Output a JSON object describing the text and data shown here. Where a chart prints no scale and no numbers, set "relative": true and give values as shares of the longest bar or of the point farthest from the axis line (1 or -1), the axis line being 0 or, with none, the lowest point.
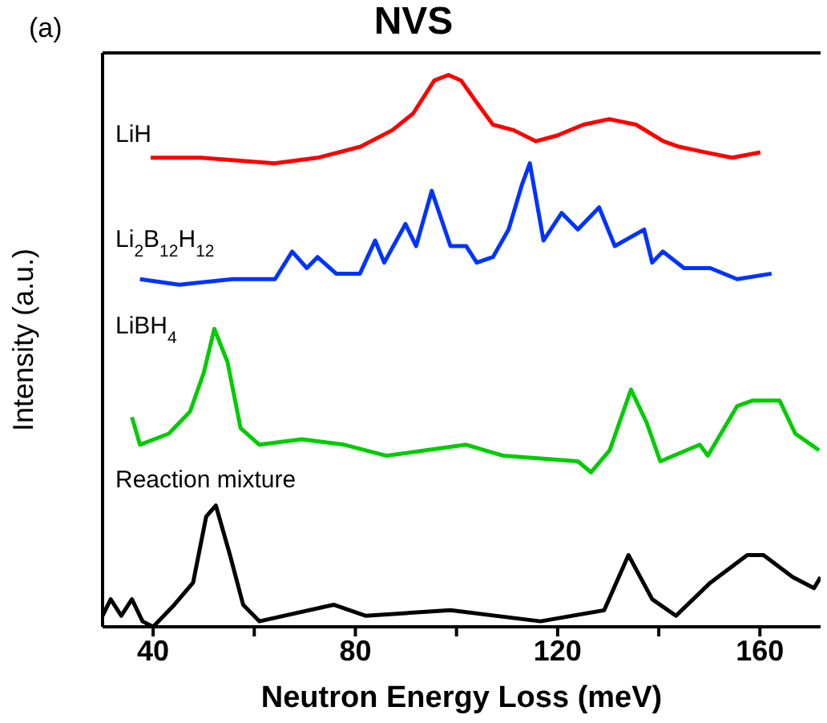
{
  "chart_data": {
    "type": "line",
    "title": "NVS",
    "xlabel": "Neutron Energy Loss (meV)",
    "ylabel": "Intensity (a.u.)",
    "annotations": [
      "(a)"
    ],
    "relative": true,
    "xlim": [
      30,
      172
    ],
    "xticks": [
      40,
      {
        "value": 60,
        "label": null
      },
      80,
      {
        "value": 100,
        "label": null
      },
      120,
      {
        "value": 140,
        "label": null
      },
      160
    ],
    "marker": "none",
    "line_style": "solid",
    "series": [
      {
        "name": "LiH",
        "color": "#ff0000",
        "x": [
          39.5,
          49.6,
          64.0,
          72.5,
          81.0,
          87.3,
          91.4,
          95.6,
          98.4,
          100.9,
          104.0,
          107.2,
          111.3,
          115.7,
          119.8,
          125.1,
          130.2,
          135.5,
          140.9,
          144.0,
          149.1,
          154.5,
          160.1
        ],
        "values": [
          0.85,
          0.85,
          0.84,
          0.85,
          0.87,
          0.9,
          0.93,
          0.99,
          1.0,
          0.99,
          0.95,
          0.91,
          0.9,
          0.88,
          0.89,
          0.91,
          0.92,
          0.91,
          0.88,
          0.87,
          0.86,
          0.85,
          0.86
        ]
      },
      {
        "name": "Li$_{2}$B$_{12}$H$_{12}$",
        "color": "#0033ff",
        "x": [
          37.4,
          45.2,
          55.7,
          64.1,
          67.5,
          70.4,
          72.5,
          76.2,
          80.9,
          83.9,
          85.7,
          89.9,
          92.0,
          95.1,
          98.8,
          101.9,
          104.0,
          107.2,
          110.3,
          112.9,
          114.5,
          117.2,
          120.8,
          124.0,
          128.2,
          131.3,
          137.1,
          138.7,
          140.8,
          145.0,
          150.2,
          155.5,
          162.3
        ],
        "values": [
          0.63,
          0.62,
          0.63,
          0.63,
          0.68,
          0.65,
          0.67,
          0.64,
          0.64,
          0.7,
          0.66,
          0.73,
          0.69,
          0.79,
          0.69,
          0.69,
          0.66,
          0.67,
          0.72,
          0.8,
          0.84,
          0.7,
          0.75,
          0.72,
          0.76,
          0.69,
          0.72,
          0.66,
          0.68,
          0.65,
          0.65,
          0.63,
          0.64
        ]
      },
      {
        "name": "LiBH$_{4}$",
        "color": "#00cc00",
        "x": [
          35.8,
          37.4,
          43.1,
          47.3,
          50.0,
          52.1,
          54.7,
          57.3,
          61.0,
          69.4,
          77.8,
          86.2,
          101.9,
          109.3,
          124.0,
          126.6,
          130.3,
          134.5,
          137.6,
          140.3,
          148.1,
          149.7,
          155.5,
          158.6,
          163.9,
          167.0,
          171.7
        ],
        "values": [
          0.38,
          0.33,
          0.35,
          0.39,
          0.46,
          0.54,
          0.48,
          0.36,
          0.33,
          0.34,
          0.33,
          0.31,
          0.33,
          0.31,
          0.3,
          0.28,
          0.32,
          0.43,
          0.37,
          0.3,
          0.33,
          0.31,
          0.4,
          0.41,
          0.41,
          0.35,
          0.32
        ]
      },
      {
        "name": "Reaction mixture",
        "color": "#000000",
        "x": [
          30.0,
          31.6,
          33.7,
          35.8,
          37.9,
          40.0,
          44.2,
          47.9,
          50.5,
          52.4,
          55.2,
          57.8,
          61.0,
          75.7,
          82.0,
          98.8,
          116.6,
          129.2,
          134.0,
          138.7,
          143.4,
          150.2,
          157.5,
          160.7,
          166.5,
          170.7,
          172
        ],
        "values": [
          0.02,
          0.05,
          0.02,
          0.05,
          0.01,
          0.0,
          0.04,
          0.08,
          0.2,
          0.22,
          0.13,
          0.04,
          0.01,
          0.04,
          0.02,
          0.03,
          0.01,
          0.03,
          0.13,
          0.05,
          0.02,
          0.08,
          0.13,
          0.13,
          0.09,
          0.07,
          0.09
        ]
      }
    ]
  }
}
